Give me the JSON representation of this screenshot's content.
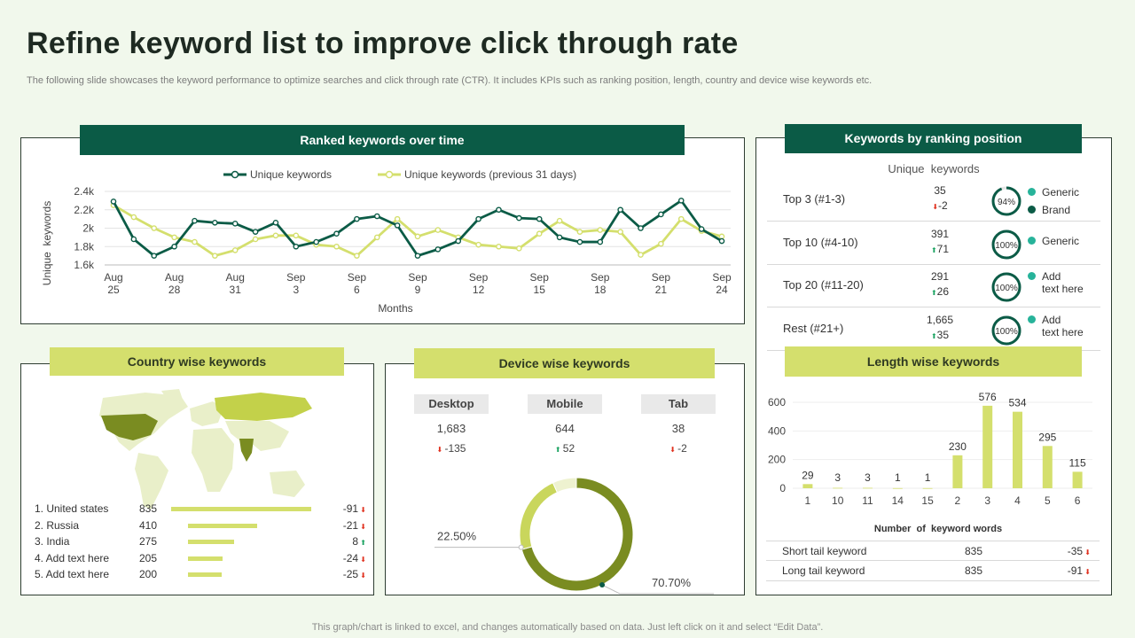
{
  "header": {
    "title": "Refine keyword list to improve click through rate",
    "subtitle": "The following slide showcases the keyword performance to optimize searches and click through rate (CTR). It includes KPIs such as ranking position, length, country and device wise keywords etc.",
    "footer": "This graph/chart is linked to excel,  and changes automatically based on data. Just left click on it and select “Edit Data”."
  },
  "colors": {
    "dark_green": "#0b5b46",
    "lime": "#d4df6d",
    "olive": "#7a8c21",
    "up": "#1aa260",
    "down": "#e0301e"
  },
  "ranked": {
    "title": "Ranked keywords over time"
  },
  "ranking": {
    "title": "Keywords by ranking position",
    "column_header": "Unique  keywords",
    "rows": [
      {
        "label": "Top 3 (#1-3)",
        "count": "35",
        "delta": "-2",
        "dir": "down",
        "pct": "94%",
        "pct_value": 94,
        "legend": [
          "Generic",
          "Brand"
        ]
      },
      {
        "label": "Top 10 (#4-10)",
        "count": "391",
        "delta": "71",
        "dir": "up",
        "pct": "100%",
        "pct_value": 100,
        "legend": [
          "Generic"
        ]
      },
      {
        "label": "Top 20 (#11-20)",
        "count": "291",
        "delta": "26",
        "dir": "up",
        "pct": "100%",
        "pct_value": 100,
        "legend": [
          "Add\ntext here"
        ]
      },
      {
        "label": "Rest (#21+)",
        "count": "1,665",
        "delta": "35",
        "dir": "up",
        "pct": "100%",
        "pct_value": 100,
        "legend": [
          "Add\ntext here"
        ]
      }
    ]
  },
  "country": {
    "title": "Country wise keywords",
    "rows": [
      {
        "name": "1. United states",
        "value": "835",
        "delta": "-91",
        "dir": "down",
        "bar": 835
      },
      {
        "name": "2. Russia",
        "value": "410",
        "delta": "-21",
        "dir": "down",
        "bar": 410
      },
      {
        "name": "3. India",
        "value": "275",
        "delta": "8",
        "dir": "up",
        "bar": 275
      },
      {
        "name": "4. Add text here",
        "value": "205",
        "delta": "-24",
        "dir": "down",
        "bar": 205
      },
      {
        "name": "5. Add text here",
        "value": "200",
        "delta": "-25",
        "dir": "down",
        "bar": 200
      }
    ]
  },
  "device": {
    "title": "Device wise keywords",
    "items": [
      {
        "name": "Desktop",
        "value": "1,683",
        "delta": "-135",
        "dir": "down"
      },
      {
        "name": "Mobile",
        "value": "644",
        "delta": "52",
        "dir": "up"
      },
      {
        "name": "Tab",
        "value": "38",
        "delta": "-2",
        "dir": "down"
      }
    ]
  },
  "length": {
    "title": "Length wise keywords",
    "rows": [
      {
        "name": "Short tail keyword",
        "value": "835",
        "delta": "-35",
        "dir": "down"
      },
      {
        "name": "Long tail keyword",
        "value": "835",
        "delta": "-91",
        "dir": "down"
      }
    ]
  },
  "chart_data": [
    {
      "type": "line",
      "title": "Ranked keywords over time",
      "xlabel": "Months",
      "ylabel": "Unique  keywords",
      "x_ticks": [
        "Aug 25",
        "Aug 28",
        "Aug 31",
        "Sep 3",
        "Sep 6",
        "Sep 9",
        "Sep 12",
        "Sep 15",
        "Sep 18",
        "Sep 21",
        "Sep 24"
      ],
      "y_ticks": [
        "1.6k",
        "1.8k",
        "2k",
        "2.2k",
        "2.4k"
      ],
      "ylim": [
        1600,
        2400
      ],
      "x": [
        25,
        26,
        27,
        28,
        29,
        30,
        31,
        32,
        33,
        34,
        35,
        36,
        37,
        38,
        39,
        40,
        41,
        42,
        43,
        44,
        45,
        46,
        47,
        48,
        49,
        50,
        51,
        52,
        53,
        54,
        55
      ],
      "series": [
        {
          "name": "Unique keywords",
          "color": "#0b5b46",
          "values": [
            2290,
            1880,
            1700,
            1800,
            2080,
            2060,
            2050,
            1960,
            2060,
            1800,
            1850,
            1940,
            2100,
            2130,
            2030,
            1700,
            1770,
            1860,
            2100,
            2200,
            2110,
            2100,
            1900,
            1850,
            1850,
            2200,
            2000,
            2150,
            2300,
            1990,
            1860
          ]
        },
        {
          "name": "Unique keywords (previous 31 days)",
          "color": "#d4df6d",
          "values": [
            2250,
            2120,
            2000,
            1900,
            1850,
            1700,
            1760,
            1880,
            1920,
            1920,
            1820,
            1800,
            1700,
            1900,
            2100,
            1910,
            1980,
            1900,
            1820,
            1800,
            1780,
            1940,
            2080,
            1960,
            1980,
            1960,
            1710,
            1830,
            2100,
            1970,
            1910
          ]
        }
      ]
    },
    {
      "type": "pie",
      "title": "Device wise keywords",
      "labels": [
        "Desktop",
        "Mobile",
        "Tab"
      ],
      "values": [
        70.7,
        22.5,
        6.8
      ],
      "value_labels": [
        "70.70%",
        "22.50%",
        ""
      ]
    },
    {
      "type": "bar",
      "title": "Length wise keywords",
      "xlabel": "Number  of  keyword words",
      "categories": [
        "1",
        "10",
        "11",
        "14",
        "15",
        "2",
        "3",
        "4",
        "5",
        "6"
      ],
      "values": [
        29,
        3,
        3,
        1,
        1,
        230,
        576,
        534,
        295,
        115
      ],
      "y_ticks": [
        "0",
        "200",
        "400",
        "600"
      ],
      "ylim": [
        0,
        600
      ]
    }
  ]
}
